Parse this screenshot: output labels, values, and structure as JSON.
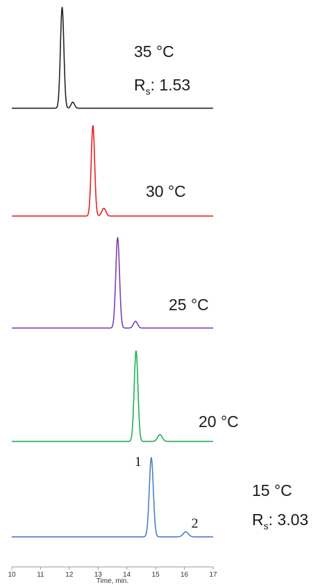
{
  "chart_data": {
    "type": "line",
    "xlabel": "Time, min.",
    "xlim": [
      10,
      17
    ],
    "x_ticks": [
      "10",
      "11",
      "12",
      "13",
      "14",
      "15",
      "16",
      "17"
    ],
    "traces": [
      {
        "temperature": "35 °C",
        "color": "#222222",
        "rs_prefix": "R",
        "rs_sub": "s",
        "rs_value": ": 1.53",
        "baseline": 0.01,
        "peaks": [
          {
            "t": 11.75,
            "h": 1.0,
            "w": 0.06
          },
          {
            "t": 12.12,
            "h": 0.06,
            "w": 0.06
          }
        ]
      },
      {
        "temperature": "30 °C",
        "color": "#ee1c1c",
        "baseline": 0.01,
        "peaks": [
          {
            "t": 12.82,
            "h": 0.93,
            "w": 0.06
          },
          {
            "t": 13.2,
            "h": 0.08,
            "w": 0.07
          }
        ]
      },
      {
        "temperature": "25 °C",
        "color": "#7b3fb0",
        "baseline": 0.01,
        "peaks": [
          {
            "t": 13.68,
            "h": 0.93,
            "w": 0.065
          },
          {
            "t": 14.3,
            "h": 0.07,
            "w": 0.07
          }
        ]
      },
      {
        "temperature": "20 °C",
        "color": "#1fae55",
        "baseline": 0.01,
        "peaks": [
          {
            "t": 14.32,
            "h": 0.93,
            "w": 0.065
          },
          {
            "t": 15.15,
            "h": 0.07,
            "w": 0.08
          }
        ]
      },
      {
        "temperature": "15 °C",
        "color": "#4a7ec8",
        "rs_prefix": "R",
        "rs_sub": "s",
        "rs_value": ": 3.03",
        "baseline": 0.01,
        "peaks": [
          {
            "t": 14.85,
            "h": 0.95,
            "w": 0.07
          },
          {
            "t": 16.05,
            "h": 0.06,
            "w": 0.09
          }
        ],
        "peak_labels": [
          "1",
          "2"
        ]
      }
    ]
  }
}
